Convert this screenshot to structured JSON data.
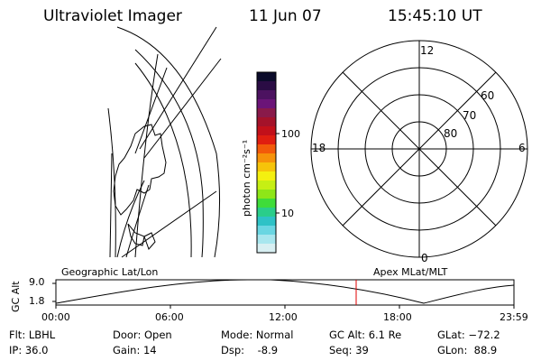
{
  "header": {
    "instrument": "Ultraviolet Imager",
    "date": "11 Jun 07",
    "time": "15:45:10 UT"
  },
  "colorbar": {
    "unit_label": "photon cm⁻²s⁻¹",
    "tick_labels": [
      "100",
      "10"
    ],
    "colors": [
      "#0b0b2a",
      "#2a0c44",
      "#4c1260",
      "#6b1478",
      "#891a4a",
      "#a4122a",
      "#c2101a",
      "#e01e10",
      "#f25a0a",
      "#f6920a",
      "#f6c40a",
      "#f4f010",
      "#c6ef14",
      "#8ee618",
      "#3fdc3a",
      "#2acd8a",
      "#2ec2c6",
      "#6ad6e2",
      "#a8e6ee",
      "#d8eff2"
    ]
  },
  "polar_plot": {
    "clock_labels": [
      "12",
      "18",
      "6",
      "0"
    ],
    "latitude_labels": [
      "60",
      "70",
      "80"
    ]
  },
  "altitude_plot": {
    "left_title": "Geographic Lat/Lon",
    "right_title": "Apex MLat/MLT",
    "ylabel": "GC Alt",
    "yticks": [
      "9.0",
      "1.8"
    ],
    "xticks": [
      "00:00",
      "06:00",
      "12:00",
      "18:00",
      "23:59"
    ]
  },
  "status": {
    "row1": [
      "Flt: LBHL",
      "Door: Open",
      "Mode: Normal",
      "GC Alt: 6.1 Re",
      "GLat: −72.2"
    ],
    "row2": [
      "IP: 36.0",
      "Gain: 14",
      "Dsp:    -8.9",
      "Seq: 39",
      "GLon:  88.9"
    ]
  },
  "colors": {
    "marker": "#e00000"
  }
}
